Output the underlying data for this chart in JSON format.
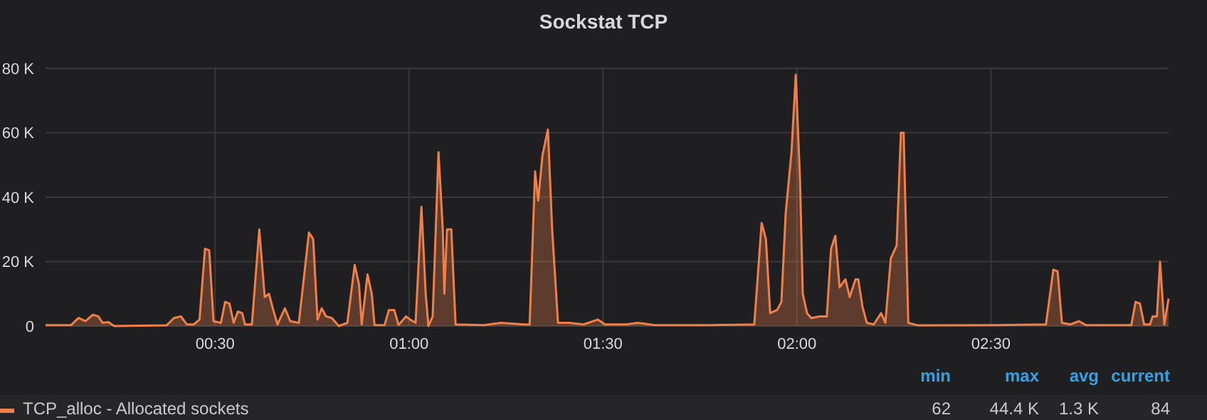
{
  "chart_data": {
    "type": "area",
    "title": "Sockstat TCP",
    "x": [
      0.063,
      0.129,
      0.148,
      0.166,
      0.185,
      0.199,
      0.21,
      0.225,
      0.24,
      0.375,
      0.394,
      0.412,
      0.427,
      0.445,
      0.46,
      0.474,
      0.485,
      0.496,
      0.515,
      0.526,
      0.537,
      0.548,
      0.559,
      0.57,
      0.577,
      0.595,
      0.614,
      0.628,
      0.639,
      0.65,
      0.661,
      0.68,
      0.694,
      0.716,
      0.742,
      0.753,
      0.764,
      0.775,
      0.786,
      0.801,
      0.819,
      0.841,
      0.86,
      0.871,
      0.878,
      0.893,
      0.904,
      0.911,
      0.937,
      0.948,
      0.962,
      0.973,
      0.992,
      1.003,
      1.017,
      1.032,
      1.043,
      1.05,
      1.061,
      1.076,
      1.087,
      1.091,
      1.098,
      1.109,
      1.12,
      1.193,
      1.237,
      1.296,
      1.311,
      1.325,
      1.333,
      1.344,
      1.358,
      1.369,
      1.384,
      1.413,
      1.45,
      1.487,
      1.505,
      1.56,
      1.59,
      1.634,
      1.78,
      1.89,
      1.909,
      1.92,
      1.931,
      1.949,
      1.96,
      1.971,
      1.986,
      1.997,
      2.008,
      2.015,
      2.026,
      2.037,
      2.059,
      2.077,
      2.088,
      2.099,
      2.11,
      2.125,
      2.136,
      2.151,
      2.158,
      2.169,
      2.18,
      2.198,
      2.217,
      2.228,
      2.242,
      2.257,
      2.268,
      2.275,
      2.287,
      2.312,
      2.514,
      2.642,
      2.661,
      2.672,
      2.683,
      2.705,
      2.727,
      2.745,
      2.862,
      2.873,
      2.884,
      2.895,
      2.91,
      2.917,
      2.928,
      2.936,
      2.947,
      2.958
    ],
    "series": [
      {
        "name": "TCP_alloc - Allocated sockets",
        "color": "#f0804a",
        "values": [
          300,
          300,
          2500,
          1500,
          3500,
          3000,
          1000,
          1200,
          0,
          200,
          2500,
          3000,
          500,
          500,
          2000,
          24000,
          23500,
          1500,
          1000,
          7500,
          7000,
          1000,
          4500,
          4000,
          500,
          500,
          30000,
          9000,
          10000,
          5000,
          500,
          5500,
          1500,
          1000,
          29000,
          27000,
          2000,
          5500,
          3000,
          2500,
          0,
          1000,
          19000,
          13000,
          500,
          16000,
          10000,
          300,
          300,
          5000,
          5000,
          300,
          3000,
          2000,
          1000,
          37000,
          10000,
          0,
          3000,
          54000,
          30000,
          10000,
          30000,
          30000,
          500,
          300,
          1000,
          500,
          500,
          48000,
          39000,
          53000,
          61000,
          30000,
          1000,
          1000,
          500,
          2000,
          500,
          500,
          1000,
          300,
          300,
          500,
          32000,
          27000,
          4000,
          5000,
          7500,
          35000,
          54000,
          78000,
          45000,
          10000,
          4000,
          2500,
          3000,
          3000,
          24000,
          28000,
          12000,
          14500,
          9000,
          14500,
          14500,
          6000,
          1000,
          500,
          4000,
          1000,
          21000,
          25000,
          60000,
          60000,
          1000,
          200,
          300,
          500,
          17500,
          17000,
          1000,
          500,
          1500,
          300,
          300,
          7500,
          7000,
          500,
          500,
          3000,
          3000,
          20000,
          500,
          8500
        ]
      }
    ],
    "xlim": [
      0.063,
      2.958
    ],
    "xticks": [
      {
        "value": 0.5,
        "label": "00:30"
      },
      {
        "value": 1,
        "label": "01:00"
      },
      {
        "value": 1.5,
        "label": "01:30"
      },
      {
        "value": 2,
        "label": "02:00"
      },
      {
        "value": 2.5,
        "label": "02:30"
      }
    ],
    "ylim": [
      0,
      80000
    ],
    "yticks": [
      {
        "value": 0,
        "label": "0"
      },
      {
        "value": 20000,
        "label": "20 K"
      },
      {
        "value": 40000,
        "label": "40 K"
      },
      {
        "value": 60000,
        "label": "60 K"
      },
      {
        "value": 80000,
        "label": "80 K"
      }
    ],
    "grid": true,
    "legend": "bottom",
    "annotations": [
      "min",
      "max",
      "avg",
      "current",
      "62",
      "44.4 K",
      "1.3 K",
      "84"
    ]
  }
}
